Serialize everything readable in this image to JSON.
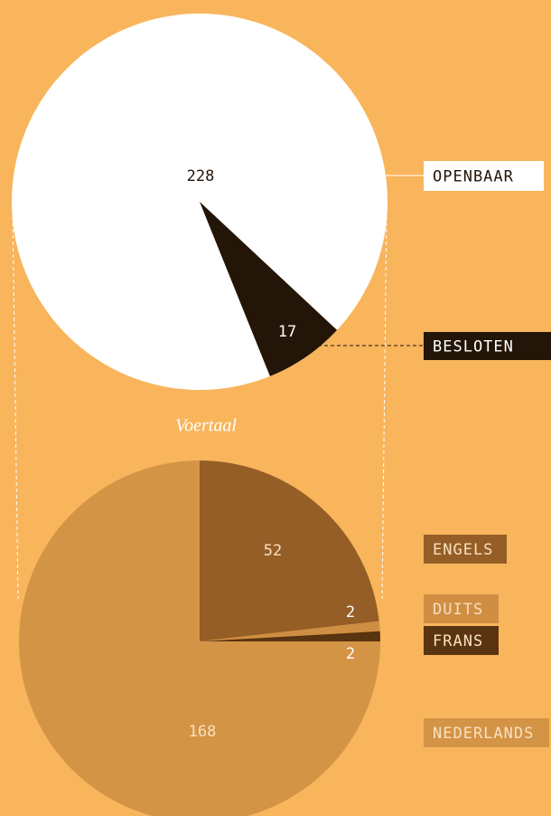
{
  "chart_data": [
    {
      "type": "pie",
      "categories": [
        "OPENBAAR",
        "BESLOTEN"
      ],
      "values": [
        228,
        17
      ],
      "colors": [
        "#ffffff",
        "#231507"
      ]
    },
    {
      "type": "pie",
      "title": "Voertaal",
      "categories": [
        "ENGELS",
        "DUITS",
        "FRANS",
        "NEDERLANDS"
      ],
      "values": [
        52,
        2,
        2,
        168
      ],
      "colors": [
        "#955e26",
        "#cf8e42",
        "#5a3310",
        "#d49446"
      ]
    }
  ]
}
